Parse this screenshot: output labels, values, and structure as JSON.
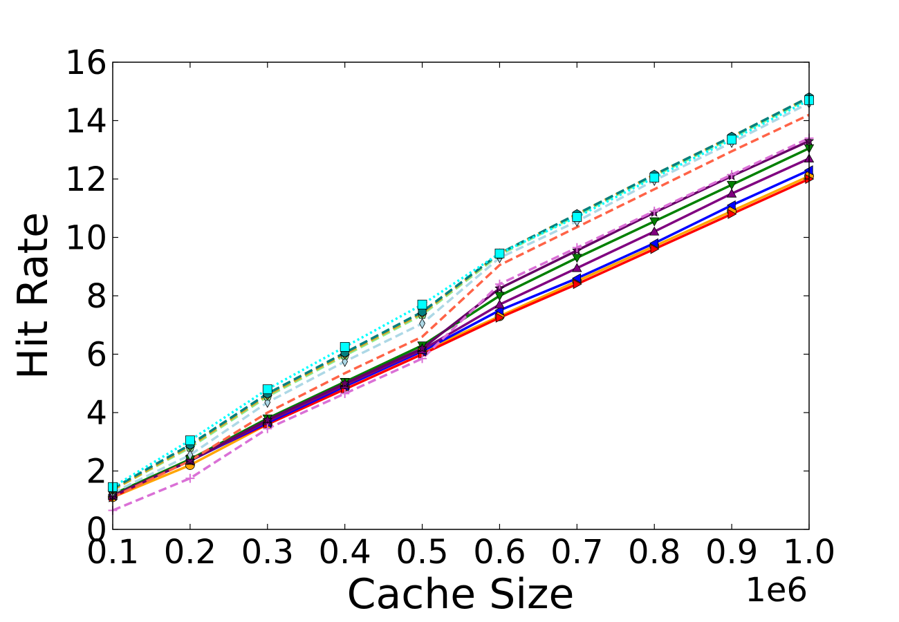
{
  "chart_data": {
    "type": "line",
    "xlabel": "Cache Size",
    "ylabel": "Hit Rate",
    "x_offset_text": "1e6",
    "xlim": [
      100000,
      1000000
    ],
    "ylim": [
      0,
      16
    ],
    "x_ticks": [
      100000,
      200000,
      300000,
      400000,
      500000,
      600000,
      700000,
      800000,
      900000,
      1000000
    ],
    "x_tick_labels": [
      "0.1",
      "0.2",
      "0.3",
      "0.4",
      "0.5",
      "0.6",
      "0.7",
      "0.8",
      "0.9",
      "1.0"
    ],
    "y_ticks": [
      0,
      2,
      4,
      6,
      8,
      10,
      12,
      14,
      16
    ],
    "y_tick_labels": [
      "0",
      "2",
      "4",
      "6",
      "8",
      "10",
      "12",
      "14",
      "16"
    ],
    "grid": false,
    "legend": "none",
    "x": [
      100000,
      200000,
      300000,
      400000,
      500000,
      600000,
      700000,
      800000,
      900000,
      1000000
    ],
    "series": [
      {
        "color": "#ffa500",
        "dash": "solid",
        "marker": "circle",
        "values": [
          1.1,
          2.2,
          3.6,
          4.9,
          6.1,
          7.3,
          8.5,
          9.7,
          10.9,
          12.1
        ]
      },
      {
        "color": "#ff0000",
        "dash": "solid",
        "marker": "triangle-right",
        "values": [
          1.1,
          2.4,
          3.6,
          4.8,
          6.0,
          7.25,
          8.4,
          9.6,
          10.8,
          12.0
        ]
      },
      {
        "color": "#0000ff",
        "dash": "solid",
        "marker": "triangle-left",
        "values": [
          1.15,
          2.35,
          3.65,
          4.9,
          6.1,
          7.5,
          8.6,
          9.8,
          11.1,
          12.3
        ]
      },
      {
        "color": "#800080",
        "dash": "solid",
        "marker": "triangle-up",
        "values": [
          1.15,
          2.35,
          3.7,
          4.95,
          6.15,
          7.7,
          8.95,
          10.2,
          11.5,
          12.7
        ]
      },
      {
        "color": "#008000",
        "dash": "solid",
        "marker": "triangle-down",
        "values": [
          1.2,
          2.4,
          3.8,
          5.05,
          6.3,
          8.0,
          9.3,
          10.55,
          11.8,
          13.05
        ]
      },
      {
        "color": "#660066",
        "dash": "solid",
        "marker": "star",
        "values": [
          1.15,
          2.35,
          3.75,
          5.0,
          6.2,
          8.25,
          9.55,
          10.85,
          12.1,
          13.3
        ]
      },
      {
        "color": "#da70d6",
        "dash": "dashed",
        "marker": "plus",
        "values": [
          0.65,
          1.75,
          3.45,
          4.65,
          5.85,
          8.4,
          9.65,
          10.9,
          12.15,
          13.4
        ]
      },
      {
        "color": "#ff6347",
        "dash": "dashed",
        "marker": "none",
        "values": [
          1.1,
          2.35,
          4.0,
          5.35,
          6.6,
          9.05,
          10.35,
          11.65,
          12.95,
          14.2
        ]
      },
      {
        "color": "#add8e6",
        "dash": "dashed",
        "marker": "thin-diamond",
        "values": [
          1.25,
          2.55,
          4.35,
          5.75,
          7.05,
          9.3,
          10.55,
          11.95,
          13.25,
          14.6
        ]
      },
      {
        "color": "#90ee90",
        "dash": "dashed",
        "marker": "pentagon",
        "values": [
          1.35,
          2.8,
          4.55,
          5.95,
          7.35,
          9.4,
          10.75,
          12.1,
          13.4,
          14.75
        ]
      },
      {
        "color": "#daa520",
        "dash": "dashed",
        "marker": "diamond",
        "values": [
          1.35,
          2.85,
          4.6,
          6.0,
          7.4,
          9.45,
          10.8,
          12.15,
          13.45,
          14.8
        ]
      },
      {
        "color": "#008080",
        "dash": "dashed",
        "marker": "hexagon",
        "values": [
          1.4,
          2.9,
          4.65,
          6.05,
          7.45,
          9.45,
          10.8,
          12.15,
          13.45,
          14.8
        ]
      },
      {
        "color": "#00ffff",
        "dash": "dotted",
        "marker": "square",
        "values": [
          1.45,
          3.05,
          4.8,
          6.25,
          7.7,
          9.45,
          10.7,
          12.05,
          13.35,
          14.7
        ]
      }
    ]
  }
}
